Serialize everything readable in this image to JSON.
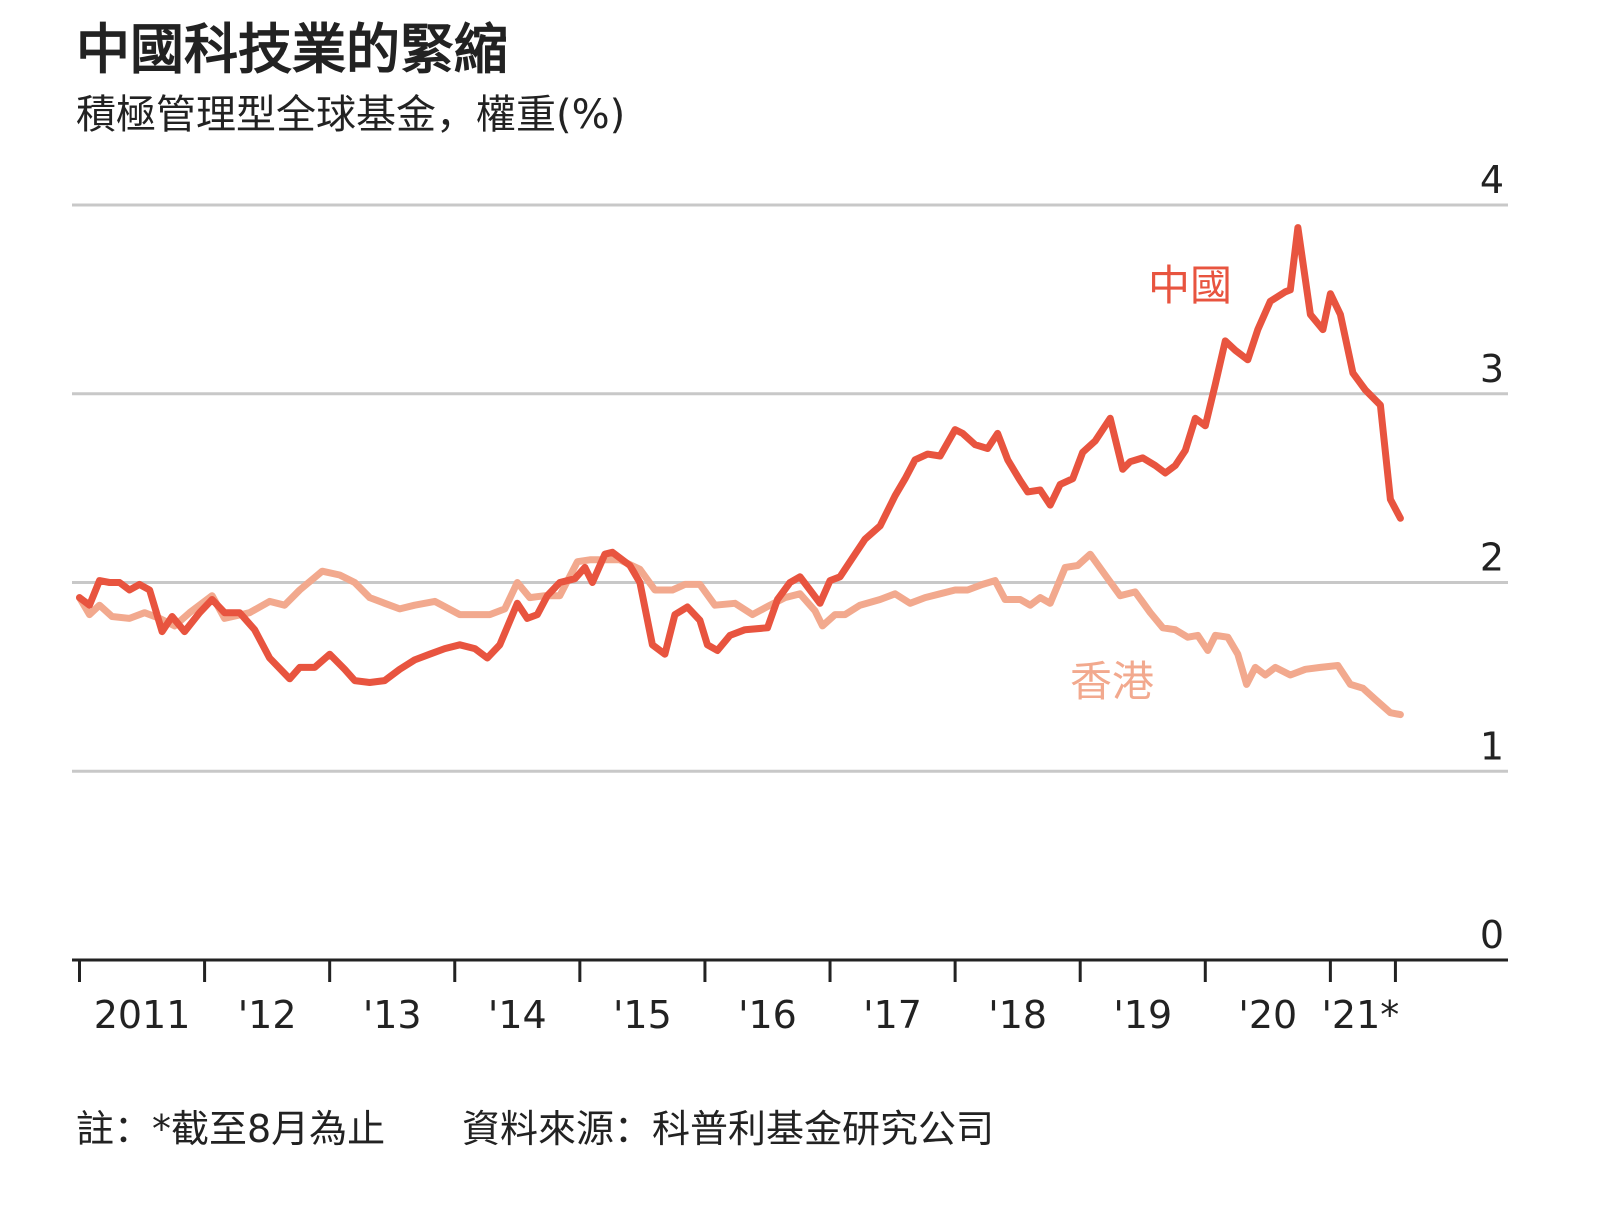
{
  "chart_data": {
    "type": "line",
    "title": "中國科技業的緊縮",
    "subtitle": "積極管理型全球基金，權重(%)",
    "note": "註：*截至8月為止",
    "source": "資料來源：科普利基金研究公司",
    "xlim": [
      2010.94,
      2022.42
    ],
    "ylim": [
      0,
      4
    ],
    "yticks": [
      0,
      1,
      2,
      3,
      4
    ],
    "grid": true,
    "xticks": [
      2011,
      2012,
      2013,
      2014,
      2015,
      2016,
      2017,
      2018,
      2019,
      2020,
      2021,
      2021.52
    ],
    "x_labels": [
      {
        "value": 2011.5,
        "label": "2011"
      },
      {
        "value": 2012.5,
        "label": "'12"
      },
      {
        "value": 2013.5,
        "label": "'13"
      },
      {
        "value": 2014.5,
        "label": "'14"
      },
      {
        "value": 2015.5,
        "label": "'15"
      },
      {
        "value": 2016.5,
        "label": "'16"
      },
      {
        "value": 2017.5,
        "label": "'17"
      },
      {
        "value": 2018.5,
        "label": "'18"
      },
      {
        "value": 2019.5,
        "label": "'19"
      },
      {
        "value": 2020.5,
        "label": "'20"
      },
      {
        "value": 2021.24,
        "label": "'21*"
      }
    ],
    "series": [
      {
        "name": "香港",
        "color": "#f2a98e",
        "x": [
          2011.0,
          2011.08,
          2011.16,
          2011.26,
          2011.4,
          2011.52,
          2011.64,
          2011.76,
          2011.88,
          2012.06,
          2012.16,
          2012.36,
          2012.52,
          2012.64,
          2012.76,
          2012.94,
          2013.08,
          2013.2,
          2013.32,
          2013.44,
          2013.56,
          2013.68,
          2013.84,
          2014.04,
          2014.28,
          2014.4,
          2014.5,
          2014.6,
          2014.72,
          2014.84,
          2014.98,
          2015.08,
          2015.2,
          2015.32,
          2015.48,
          2015.6,
          2015.74,
          2015.84,
          2015.96,
          2016.08,
          2016.24,
          2016.38,
          2016.52,
          2016.64,
          2016.76,
          2016.88,
          2016.94,
          2017.04,
          2017.12,
          2017.24,
          2017.4,
          2017.52,
          2017.64,
          2017.76,
          2017.88,
          2018.0,
          2018.1,
          2018.22,
          2018.32,
          2018.4,
          2018.52,
          2018.6,
          2018.68,
          2018.76,
          2018.88,
          2018.98,
          2019.08,
          2019.2,
          2019.32,
          2019.44,
          2019.56,
          2019.66,
          2019.76,
          2019.86,
          2019.94,
          2020.02,
          2020.08,
          2020.18,
          2020.26,
          2020.33,
          2020.4,
          2020.48,
          2020.56,
          2020.68,
          2020.8,
          2020.92,
          2021.06,
          2021.16,
          2021.26,
          2021.36,
          2021.48,
          2021.56
        ],
        "values": [
          1.92,
          1.83,
          1.88,
          1.82,
          1.81,
          1.84,
          1.81,
          1.77,
          1.84,
          1.93,
          1.81,
          1.84,
          1.9,
          1.88,
          1.96,
          2.06,
          2.04,
          2.0,
          1.92,
          1.89,
          1.86,
          1.88,
          1.9,
          1.83,
          1.83,
          1.86,
          2.0,
          1.92,
          1.93,
          1.93,
          2.11,
          2.12,
          2.12,
          2.12,
          2.07,
          1.96,
          1.96,
          1.99,
          1.99,
          1.88,
          1.89,
          1.83,
          1.88,
          1.92,
          1.94,
          1.85,
          1.77,
          1.83,
          1.83,
          1.88,
          1.91,
          1.94,
          1.89,
          1.92,
          1.94,
          1.96,
          1.96,
          1.99,
          2.01,
          1.91,
          1.91,
          1.88,
          1.92,
          1.89,
          2.08,
          2.09,
          2.15,
          2.04,
          1.93,
          1.95,
          1.84,
          1.76,
          1.75,
          1.71,
          1.72,
          1.64,
          1.72,
          1.71,
          1.62,
          1.46,
          1.55,
          1.51,
          1.55,
          1.51,
          1.54,
          1.55,
          1.56,
          1.46,
          1.44,
          1.38,
          1.31,
          1.3
        ]
      },
      {
        "name": "中國",
        "color": "#e8543f",
        "x": [
          2011.0,
          2011.08,
          2011.16,
          2011.24,
          2011.32,
          2011.4,
          2011.48,
          2011.56,
          2011.66,
          2011.74,
          2011.84,
          2011.96,
          2012.06,
          2012.16,
          2012.28,
          2012.4,
          2012.52,
          2012.68,
          2012.76,
          2012.88,
          2013.0,
          2013.12,
          2013.2,
          2013.32,
          2013.44,
          2013.56,
          2013.68,
          2013.8,
          2013.92,
          2014.04,
          2014.16,
          2014.26,
          2014.36,
          2014.5,
          2014.58,
          2014.66,
          2014.74,
          2014.84,
          2014.96,
          2015.04,
          2015.1,
          2015.2,
          2015.26,
          2015.4,
          2015.48,
          2015.58,
          2015.68,
          2015.76,
          2015.86,
          2015.96,
          2016.02,
          2016.1,
          2016.2,
          2016.32,
          2016.5,
          2016.58,
          2016.68,
          2016.76,
          2016.84,
          2016.92,
          2017.0,
          2017.08,
          2017.2,
          2017.28,
          2017.4,
          2017.52,
          2017.6,
          2017.68,
          2017.78,
          2017.88,
          2018.0,
          2018.06,
          2018.16,
          2018.26,
          2018.34,
          2018.42,
          2018.52,
          2018.58,
          2018.68,
          2018.76,
          2018.84,
          2018.94,
          2019.02,
          2019.12,
          2019.24,
          2019.34,
          2019.4,
          2019.5,
          2019.6,
          2019.68,
          2019.76,
          2019.84,
          2019.92,
          2020.0,
          2020.08,
          2020.16,
          2020.24,
          2020.34,
          2020.42,
          2020.52,
          2020.64,
          2020.68,
          2020.74,
          2020.84,
          2020.94,
          2021.0,
          2021.08,
          2021.18,
          2021.28,
          2021.4,
          2021.48,
          2021.56
        ],
        "values": [
          1.92,
          1.88,
          2.01,
          2.0,
          2.0,
          1.96,
          1.99,
          1.96,
          1.74,
          1.82,
          1.74,
          1.84,
          1.91,
          1.84,
          1.84,
          1.75,
          1.6,
          1.49,
          1.55,
          1.55,
          1.62,
          1.54,
          1.48,
          1.47,
          1.48,
          1.54,
          1.59,
          1.62,
          1.65,
          1.67,
          1.65,
          1.6,
          1.67,
          1.89,
          1.81,
          1.83,
          1.93,
          2.0,
          2.02,
          2.08,
          2.0,
          2.15,
          2.16,
          2.09,
          2.0,
          1.67,
          1.62,
          1.83,
          1.87,
          1.8,
          1.67,
          1.64,
          1.72,
          1.75,
          1.76,
          1.91,
          2.0,
          2.03,
          1.96,
          1.89,
          2.01,
          2.03,
          2.15,
          2.23,
          2.3,
          2.46,
          2.55,
          2.65,
          2.68,
          2.67,
          2.81,
          2.79,
          2.73,
          2.71,
          2.79,
          2.65,
          2.54,
          2.48,
          2.49,
          2.41,
          2.52,
          2.55,
          2.69,
          2.75,
          2.87,
          2.6,
          2.64,
          2.66,
          2.62,
          2.58,
          2.62,
          2.7,
          2.87,
          2.83,
          3.05,
          3.28,
          3.23,
          3.18,
          3.34,
          3.49,
          3.54,
          3.55,
          3.88,
          3.42,
          3.34,
          3.53,
          3.42,
          3.11,
          3.02,
          2.94,
          2.44,
          2.34
        ]
      }
    ]
  }
}
